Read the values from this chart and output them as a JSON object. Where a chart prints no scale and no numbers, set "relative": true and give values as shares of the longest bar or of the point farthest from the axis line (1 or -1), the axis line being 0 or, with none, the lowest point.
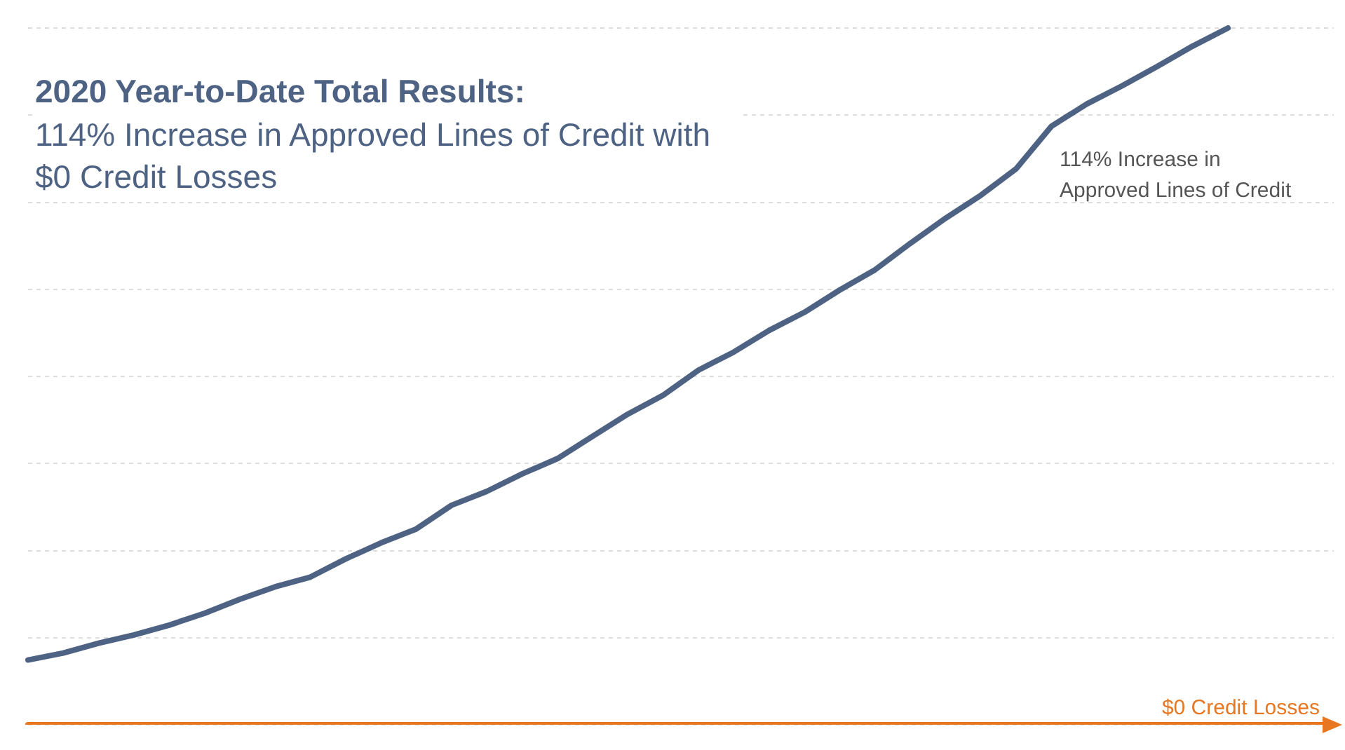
{
  "chart_data": {
    "type": "line",
    "title": "2020 Year-to-Date Total Results:",
    "subtitle": "114% Increase in Approved Lines of Credit with $0 Credit Losses",
    "relative": true,
    "grid": "y",
    "legend": false,
    "marker": "none",
    "categories": [
      null,
      null,
      null,
      null,
      null,
      null,
      null,
      null,
      null,
      null,
      null,
      null,
      null,
      null,
      null,
      null,
      null,
      null,
      null,
      null,
      null,
      null,
      null,
      null,
      null,
      null,
      null,
      null,
      null,
      null,
      null,
      null,
      null,
      null,
      null,
      null,
      null,
      null
    ],
    "series": [
      {
        "name": "114% Increase in Approved Lines of Credit",
        "color": "#4e6384",
        "values": [
          0.093,
          0.103,
          0.117,
          0.129,
          0.143,
          0.16,
          0.18,
          0.198,
          0.212,
          0.238,
          0.261,
          0.281,
          0.315,
          0.335,
          0.36,
          0.382,
          0.414,
          0.446,
          0.473,
          0.509,
          0.535,
          0.566,
          0.592,
          0.624,
          0.653,
          0.691,
          0.727,
          0.76,
          0.798,
          0.859,
          0.891,
          0.917,
          0.945,
          0.974,
          1.0,
          null,
          null,
          null
        ]
      },
      {
        "name": "$0 Credit Losses",
        "color": "#e87722",
        "values": [
          0,
          0,
          0,
          0,
          0,
          0,
          0,
          0,
          0,
          0,
          0,
          0,
          0,
          0,
          0,
          0,
          0,
          0,
          0,
          0,
          0,
          0,
          0,
          0,
          0,
          0,
          0,
          0,
          0,
          0,
          0,
          0,
          0,
          0,
          0,
          0,
          0,
          0
        ]
      }
    ]
  }
}
